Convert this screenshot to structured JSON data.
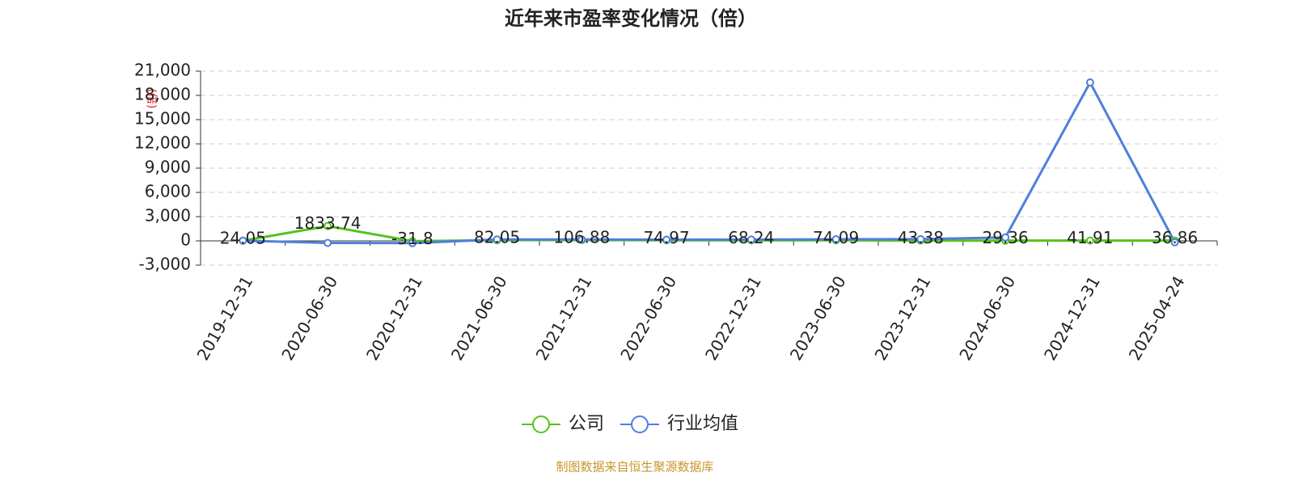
{
  "chart_data": {
    "type": "line",
    "title": "近年来市盈率变化情况（倍）",
    "y_label": "(倍)",
    "source": "制图数据来自恒生聚源数据库",
    "categories": [
      "2019-12-31",
      "2020-06-30",
      "2020-12-31",
      "2021-06-30",
      "2021-12-31",
      "2022-06-30",
      "2022-12-31",
      "2023-06-30",
      "2023-12-31",
      "2024-06-30",
      "2024-12-31",
      "2025-04-24"
    ],
    "series": [
      {
        "name": "公司",
        "color": "#52c41a",
        "values": [
          24.05,
          1833.74,
          -31.8,
          82.05,
          106.88,
          74.97,
          68.24,
          74.09,
          43.38,
          29.36,
          41.91,
          36.86
        ]
      },
      {
        "name": "行业均值",
        "color": "#4e7fdc",
        "values": [
          30,
          -250,
          -280,
          180,
          170,
          150,
          160,
          200,
          210,
          420,
          19600,
          -180
        ]
      }
    ],
    "ylim": [
      -3000,
      21000
    ],
    "yticks": [
      {
        "value": -3000,
        "label": "-3,000"
      },
      0,
      {
        "value": 3000,
        "label": "3,000"
      },
      {
        "value": 6000,
        "label": "6,000"
      },
      {
        "value": 9000,
        "label": "9,000"
      },
      {
        "value": 12000,
        "label": "12,000"
      },
      {
        "value": 15000,
        "label": "15,000"
      },
      {
        "value": 18000,
        "label": "18,000"
      },
      {
        "value": 21000,
        "label": "21,000"
      }
    ],
    "grid": true
  }
}
